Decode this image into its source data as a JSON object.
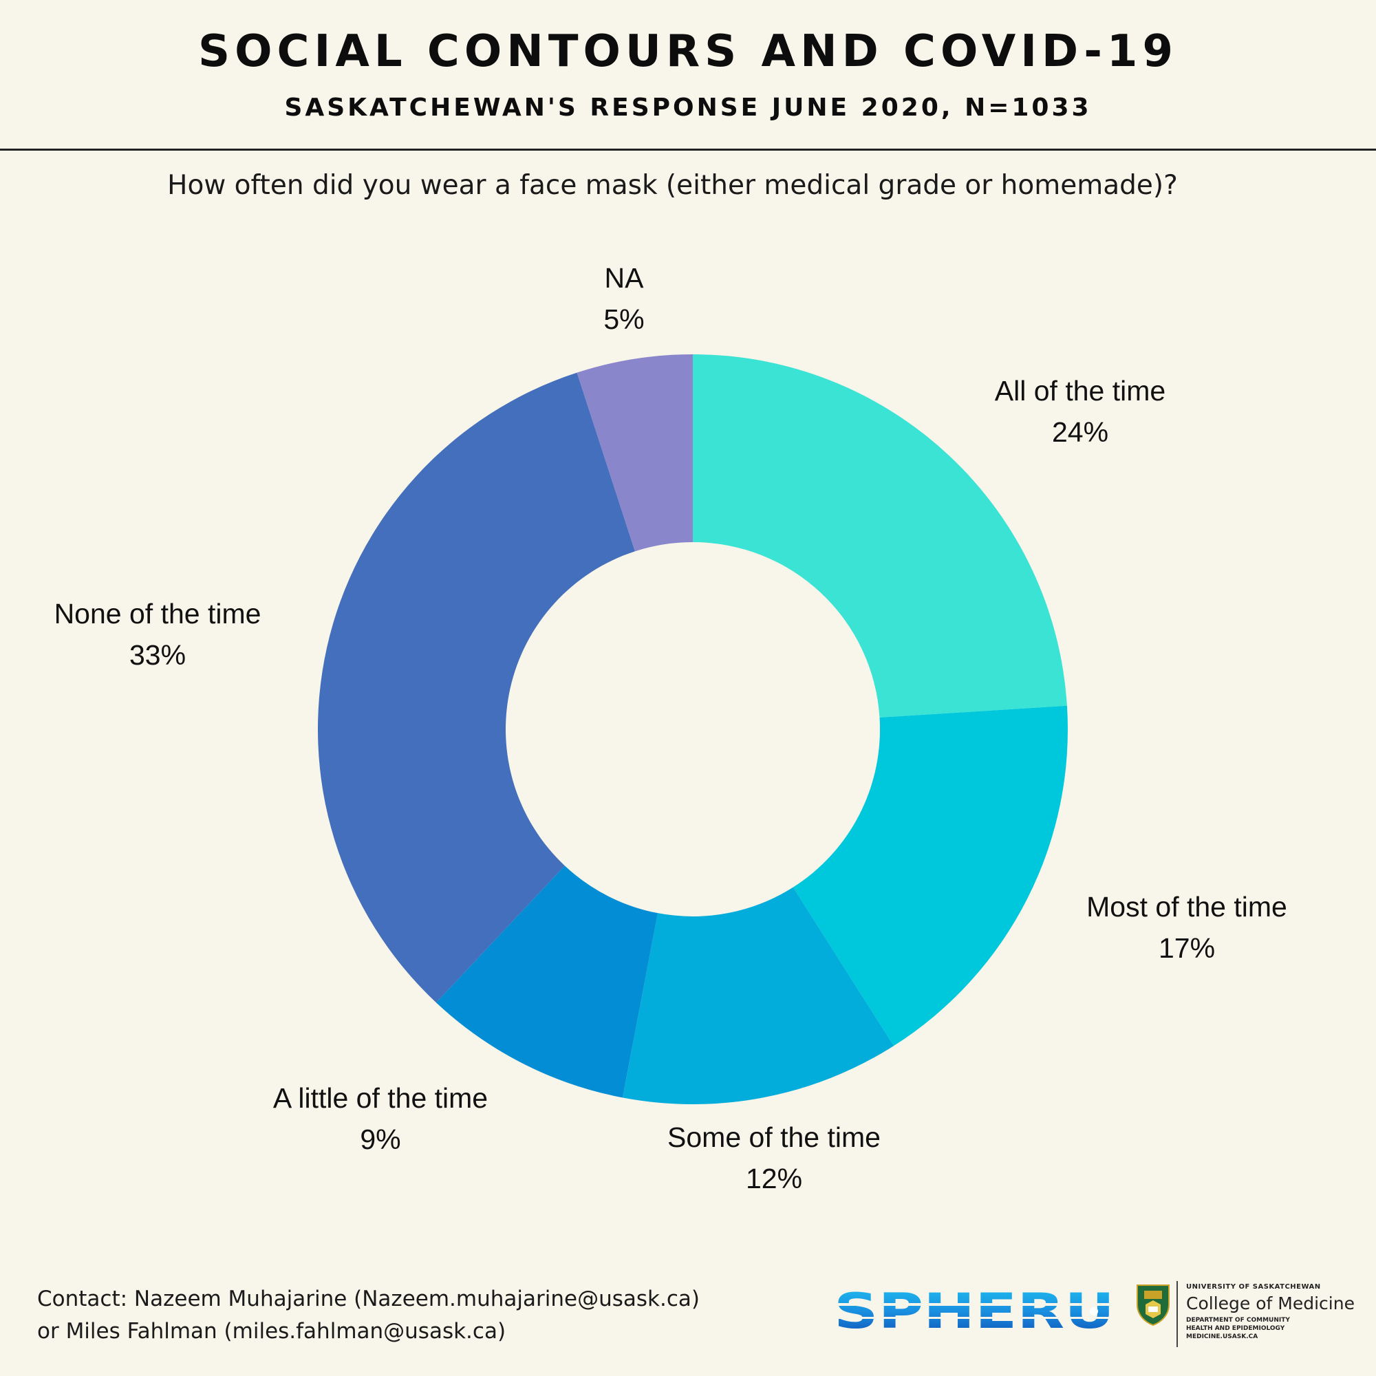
{
  "header": {
    "title": "SOCIAL CONTOURS AND COVID-19",
    "subtitle": "SASKATCHEWAN'S RESPONSE JUNE 2020, N=1033"
  },
  "chart_data": {
    "type": "pie",
    "variant": "donut",
    "title": "How often did you wear a face mask (either medical grade or homemade)?",
    "unit": "%",
    "slices": [
      {
        "label": "All of the time",
        "value": 24,
        "value_label": "24%",
        "color": "#3be3d5"
      },
      {
        "label": "Most of the time",
        "value": 17,
        "value_label": "17%",
        "color": "#00c8dc"
      },
      {
        "label": "Some of the time",
        "value": 12,
        "value_label": "12%",
        "color": "#02acdb"
      },
      {
        "label": "A little of the time",
        "value": 9,
        "value_label": "9%",
        "color": "#038dd4"
      },
      {
        "label": "None of the time",
        "value": 33,
        "value_label": "33%",
        "color": "#446fbd"
      },
      {
        "label": "NA",
        "value": 5,
        "value_label": "5%",
        "color": "#8986cc"
      }
    ],
    "legend": "labels beside slices"
  },
  "footer": {
    "contact_line1": "Contact: Nazeem Muhajarine (Nazeem.muhajarine@usask.ca)",
    "contact_line2": "or Miles Fahlman (miles.fahlman@usask.ca)",
    "spheru_logo_text": "SPHERU",
    "usask_university": "UNIVERSITY OF SASKATCHEWAN",
    "usask_college": "College of Medicine",
    "usask_dept_line1": "DEPARTMENT OF COMMUNITY",
    "usask_dept_line2": "HEALTH AND EPIDEMIOLOGY",
    "usask_dept_line3": "MEDICINE.USASK.CA"
  }
}
